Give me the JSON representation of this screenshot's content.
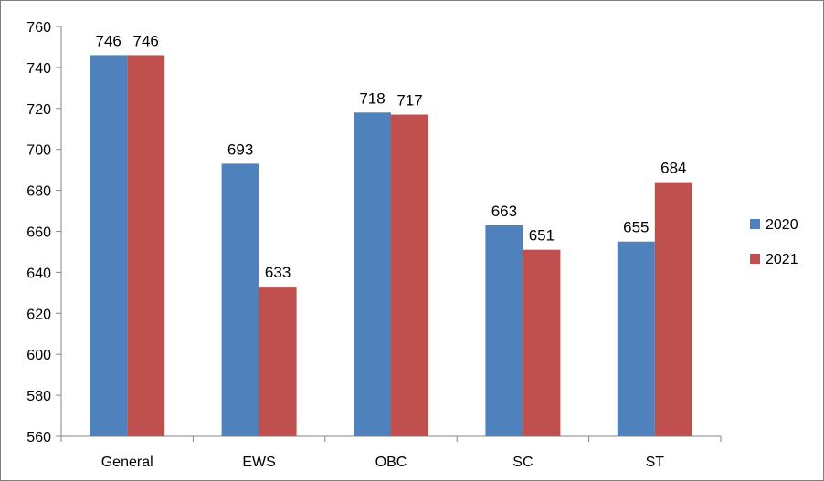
{
  "chart_data": {
    "type": "bar",
    "categories": [
      "General",
      "EWS",
      "OBC",
      "SC",
      "ST"
    ],
    "series": [
      {
        "name": "2020",
        "values": [
          746,
          693,
          718,
          663,
          655
        ],
        "color": "#4f81bd"
      },
      {
        "name": "2021",
        "values": [
          746,
          633,
          717,
          651,
          684
        ],
        "color": "#c0504d"
      }
    ],
    "ylim": [
      560,
      760
    ],
    "yticks": [
      560,
      580,
      600,
      620,
      640,
      660,
      680,
      700,
      720,
      740,
      760
    ],
    "data_labels": true,
    "grid": false,
    "legend": "right",
    "title": "",
    "xlabel": "",
    "ylabel": ""
  }
}
